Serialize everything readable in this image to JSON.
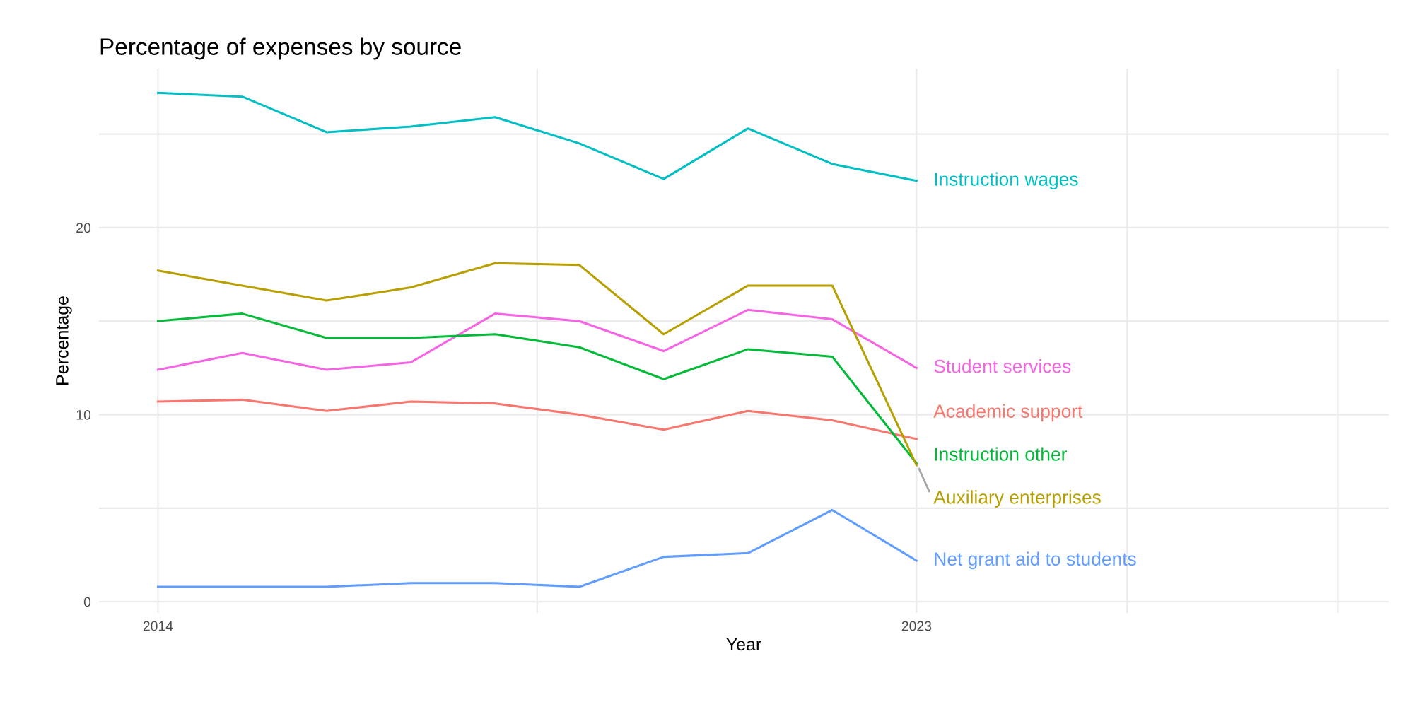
{
  "chart_data": {
    "type": "line",
    "title": "Percentage of expenses by source",
    "xlabel": "Year",
    "ylabel": "Percentage",
    "x": [
      2014,
      2015,
      2016,
      2017,
      2018,
      2019,
      2020,
      2021,
      2022,
      2023
    ],
    "series": [
      {
        "name": "Instruction wages",
        "color": "#00BFC4",
        "values": [
          27.2,
          27.0,
          25.1,
          25.4,
          25.9,
          24.5,
          22.6,
          25.3,
          23.4,
          22.5
        ]
      },
      {
        "name": "Student services",
        "color": "#F564E3",
        "values": [
          12.4,
          13.3,
          12.4,
          12.8,
          15.4,
          15.0,
          13.4,
          15.6,
          15.1,
          12.5
        ]
      },
      {
        "name": "Academic support",
        "color": "#F8766D",
        "values": [
          10.7,
          10.8,
          10.2,
          10.7,
          10.6,
          10.0,
          9.2,
          10.2,
          9.7,
          8.7
        ]
      },
      {
        "name": "Instruction other",
        "color": "#00BA38",
        "values": [
          15.0,
          15.4,
          14.1,
          14.1,
          14.3,
          13.6,
          11.9,
          13.5,
          13.1,
          7.4
        ]
      },
      {
        "name": "Auxiliary enterprises",
        "color": "#B79F00",
        "values": [
          17.7,
          16.9,
          16.1,
          16.8,
          18.1,
          18.0,
          14.3,
          16.9,
          16.9,
          7.3
        ]
      },
      {
        "name": "Net grant aid to students",
        "color": "#619CFF",
        "values": [
          0.8,
          0.8,
          0.8,
          1.0,
          1.0,
          0.8,
          2.4,
          2.6,
          4.9,
          2.2
        ]
      }
    ],
    "xlim": [
      2013.3,
      2028.6
    ],
    "xticks": [
      2014,
      {
        "value": 2018.5,
        "label": null
      },
      2023,
      {
        "value": 2025.5,
        "label": null
      },
      {
        "value": 2028,
        "label": null
      }
    ],
    "ylim": [
      -0.6,
      28.5
    ],
    "yticks": [
      0,
      {
        "value": 5,
        "label": null
      },
      10,
      {
        "value": 15,
        "label": null
      },
      20,
      {
        "value": 25,
        "label": null
      }
    ],
    "grid": true,
    "legend": false,
    "line_style": "solid",
    "marker": "none"
  }
}
